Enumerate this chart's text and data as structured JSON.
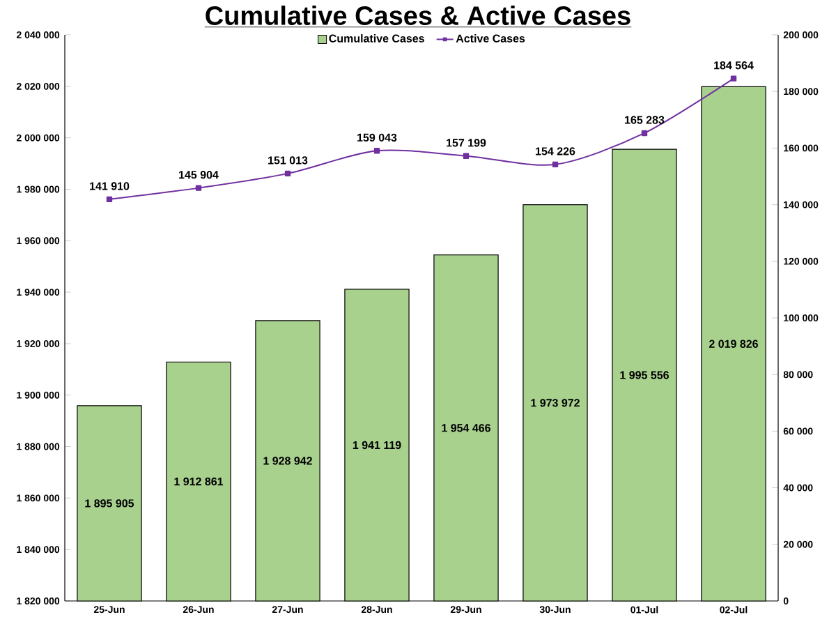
{
  "chart_data": {
    "type": "bar",
    "title": "Cumulative Cases & Active Cases",
    "categories": [
      "25-Jun",
      "26-Jun",
      "27-Jun",
      "28-Jun",
      "29-Jun",
      "30-Jun",
      "01-Jul",
      "02-Jul"
    ],
    "series": [
      {
        "name": "Cumulative Cases",
        "color": "#a9d18e",
        "values": [
          1895905,
          1912861,
          1928942,
          1941119,
          1954466,
          1973972,
          1995556,
          2019826
        ],
        "value_labels": [
          "1 895 905",
          "1 912 861",
          "1 928 942",
          "1 941 119",
          "1 954 466",
          "1 973 972",
          "1 995 556",
          "2 019 826"
        ]
      },
      {
        "name": "Active Cases",
        "type": "line",
        "axis": "y2",
        "color": "#7030a0",
        "marker": "square",
        "values": [
          141910,
          145904,
          151013,
          159043,
          157199,
          154226,
          165283,
          184564
        ],
        "value_labels": [
          "141 910",
          "145 904",
          "151 013",
          "159 043",
          "157 199",
          "154 226",
          "165 283",
          "184 564"
        ]
      }
    ],
    "ylim": [
      1820000,
      2040000
    ],
    "yticks": [
      {
        "value": 1820000,
        "label": "1 820 000"
      },
      {
        "value": 1840000,
        "label": "1 840 000"
      },
      {
        "value": 1860000,
        "label": "1 860 000"
      },
      {
        "value": 1880000,
        "label": "1 880 000"
      },
      {
        "value": 1900000,
        "label": "1 900 000"
      },
      {
        "value": 1920000,
        "label": "1 920 000"
      },
      {
        "value": 1940000,
        "label": "1 940 000"
      },
      {
        "value": 1960000,
        "label": "1 960 000"
      },
      {
        "value": 1980000,
        "label": "1 980 000"
      },
      {
        "value": 2000000,
        "label": "2 000 000"
      },
      {
        "value": 2020000,
        "label": "2 020 000"
      },
      {
        "value": 2040000,
        "label": "2 040 000"
      }
    ],
    "y2lim": [
      0,
      200000
    ],
    "y2ticks": [
      0,
      {
        "value": 20000,
        "label": "20 000"
      },
      {
        "value": 40000,
        "label": "40 000"
      },
      {
        "value": 60000,
        "label": "60 000"
      },
      {
        "value": 80000,
        "label": "80 000"
      },
      {
        "value": 100000,
        "label": "100 000"
      },
      {
        "value": 120000,
        "label": "120 000"
      },
      {
        "value": 140000,
        "label": "140 000"
      },
      {
        "value": 160000,
        "label": "160 000"
      },
      {
        "value": 180000,
        "label": "180 000"
      },
      {
        "value": 200000,
        "label": "200 000"
      }
    ],
    "legend": "top"
  }
}
